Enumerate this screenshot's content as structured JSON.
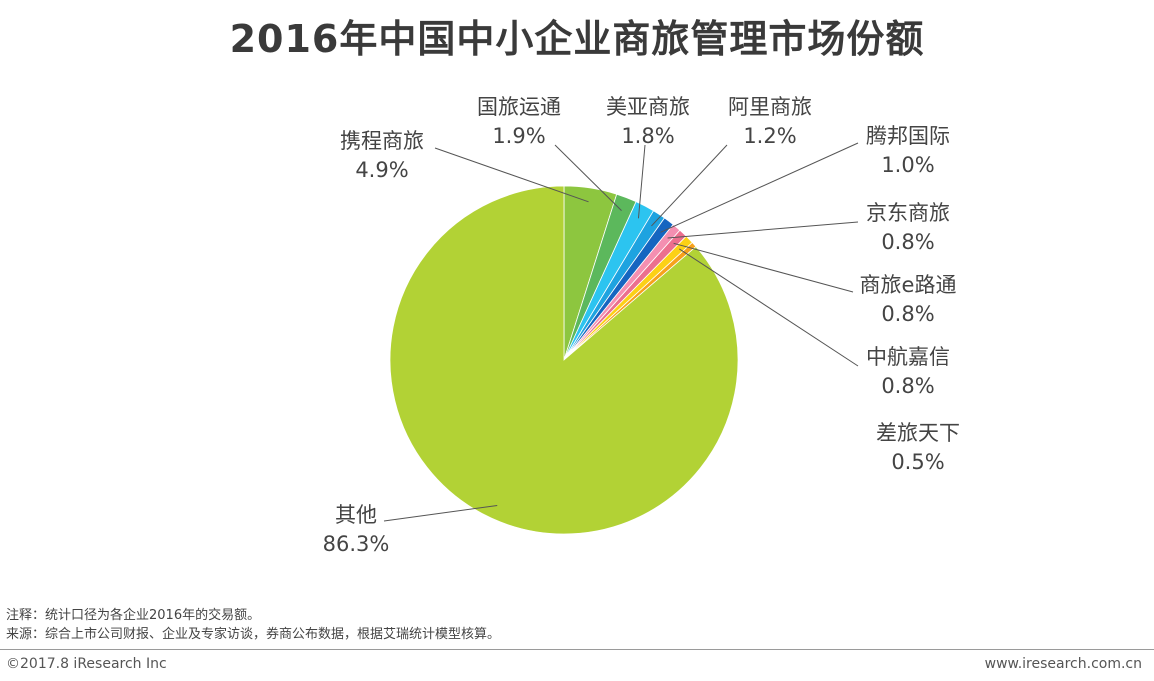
{
  "chart_data": {
    "type": "pie",
    "title": "2016年中国中小企业商旅管理市场份额",
    "slices": [
      {
        "label": "携程商旅",
        "value_text": "4.9%",
        "value": 4.9,
        "color": "#8dc63f"
      },
      {
        "label": "国旅运通",
        "value_text": "1.9%",
        "value": 1.9,
        "color": "#5cb85c"
      },
      {
        "label": "美亚商旅",
        "value_text": "1.8%",
        "value": 1.8,
        "color": "#2cc4f0"
      },
      {
        "label": "阿里商旅",
        "value_text": "1.2%",
        "value": 1.2,
        "color": "#1ea3e0"
      },
      {
        "label": "腾邦国际",
        "value_text": "1.0%",
        "value": 1.0,
        "color": "#1565c0"
      },
      {
        "label": "京东商旅",
        "value_text": "0.8%",
        "value": 0.8,
        "color": "#f48fb1"
      },
      {
        "label": "商旅e路通",
        "value_text": "0.8%",
        "value": 0.8,
        "color": "#ec6f8e"
      },
      {
        "label": "中航嘉信",
        "value_text": "0.8%",
        "value": 0.8,
        "color": "#fcd116"
      },
      {
        "label": "差旅天下",
        "value_text": "0.5%",
        "value": 0.5,
        "color": "#f7a21b"
      },
      {
        "label": "其他",
        "value_text": "86.3%",
        "value": 86.3,
        "color": "#b2d235"
      }
    ]
  },
  "notes": {
    "note": "注释：统计口径为各企业2016年的交易额。",
    "source": "来源：综合上市公司财报、企业及专家访谈，券商公布数据，根据艾瑞统计模型核算。"
  },
  "footer": {
    "copyright": "©2017.8 iResearch Inc",
    "website": "www.iresearch.com.cn"
  }
}
